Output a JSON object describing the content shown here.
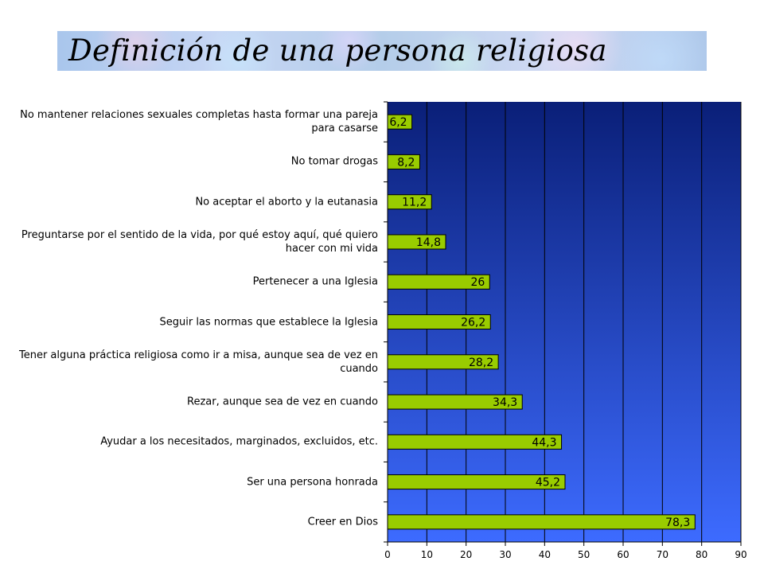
{
  "title": "Definición de una persona religiosa",
  "chart_data": {
    "type": "bar",
    "orientation": "horizontal",
    "categories": [
      "No mantener relaciones sexuales completas hasta formar una pareja para casarse",
      "No tomar drogas",
      "No aceptar el aborto y la eutanasia",
      "Preguntarse por el sentido de la vida, por qué estoy aquí, qué quiero hacer con mi vida",
      "Pertenecer a una Iglesia",
      "Seguir las normas que establece la Iglesia",
      "Tener alguna práctica religiosa como ir a misa, aunque sea de vez en cuando",
      "Rezar, aunque sea de vez en cuando",
      "Ayudar a los necesitados, marginados, excluidos, etc.",
      "Ser una persona honrada",
      "Creer en Dios"
    ],
    "values": [
      6.2,
      8.2,
      11.2,
      14.8,
      26,
      26.2,
      28.2,
      34.3,
      44.3,
      45.2,
      78.3
    ],
    "value_labels": [
      "6,2",
      "8,2",
      "11,2",
      "14,8",
      "26",
      "26,2",
      "28,2",
      "34,3",
      "44,3",
      "45,2",
      "78,3"
    ],
    "xlim": [
      0,
      90
    ],
    "xticks": [
      "0",
      "10",
      "20",
      "30",
      "40",
      "50",
      "60",
      "70",
      "80",
      "90"
    ],
    "grid": "vertical",
    "legend": "none",
    "colors": {
      "bar": "#99cc00",
      "bar_border": "#000000",
      "plot_bg_top": "#0a1f78",
      "plot_bg_bottom": "#3d6bff",
      "gridline": "#000000"
    }
  }
}
